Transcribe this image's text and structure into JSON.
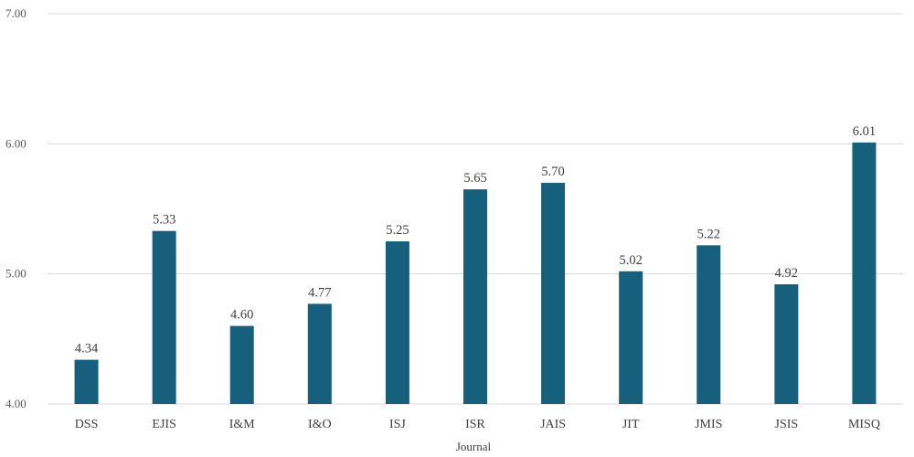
{
  "chart_data": {
    "type": "bar",
    "title": "",
    "xlabel": "Journal",
    "ylabel": "",
    "categories": [
      "DSS",
      "EJIS",
      "I&M",
      "I&O",
      "ISJ",
      "ISR",
      "JAIS",
      "JIT",
      "JMIS",
      "JSIS",
      "MISQ"
    ],
    "values": [
      4.34,
      5.33,
      4.6,
      4.77,
      5.25,
      5.65,
      5.7,
      5.02,
      5.22,
      4.92,
      6.01
    ],
    "value_labels": [
      "4.34",
      "5.33",
      "4.60",
      "4.77",
      "5.25",
      "5.65",
      "5.70",
      "5.02",
      "5.22",
      "4.92",
      "6.01"
    ],
    "ylim": [
      4.0,
      7.0
    ],
    "yticks": [
      "4.00",
      "5.00",
      "6.00",
      "7.00"
    ],
    "grid": true,
    "legend": "none",
    "bar_color": "#17607d"
  }
}
